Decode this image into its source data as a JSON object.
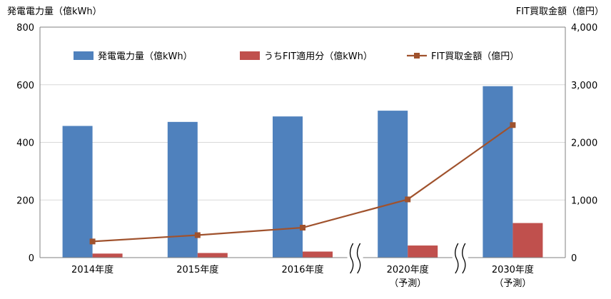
{
  "chart_data": {
    "type": "bar",
    "categories": [
      {
        "label": "2014年度",
        "sub": ""
      },
      {
        "label": "2015年度",
        "sub": ""
      },
      {
        "label": "2016年度",
        "sub": ""
      },
      {
        "label": "2020年度",
        "sub": "（予測）"
      },
      {
        "label": "2030年度",
        "sub": "（予測）"
      }
    ],
    "axis_breaks_after": [
      2,
      3
    ],
    "y_left": {
      "title": "発電電力量（億kWh）",
      "min": 0,
      "max": 800,
      "ticks": [
        "0",
        "200",
        "400",
        "600",
        "800"
      ]
    },
    "y_right": {
      "title": "FIT買取金額（億円）",
      "min": 0,
      "max": 4000,
      "ticks": [
        "0",
        "1,000",
        "2,000",
        "3,000",
        "4,000"
      ]
    },
    "series": [
      {
        "name": "発電電力量（億kWh）",
        "kind": "bar",
        "axis": "left",
        "color": "#4f81bd",
        "values": [
          457,
          471,
          490,
          510,
          595
        ]
      },
      {
        "name": "うちFIT適用分（億kWh）",
        "kind": "bar",
        "axis": "left",
        "color": "#c0504d",
        "values": [
          14,
          16,
          21,
          42,
          120
        ]
      },
      {
        "name": "FIT買取金額（億円）",
        "kind": "line",
        "axis": "right",
        "color": "#a0522d",
        "values": [
          280,
          390,
          520,
          1010,
          2300
        ]
      }
    ],
    "legend_position": "top",
    "grid": true
  }
}
